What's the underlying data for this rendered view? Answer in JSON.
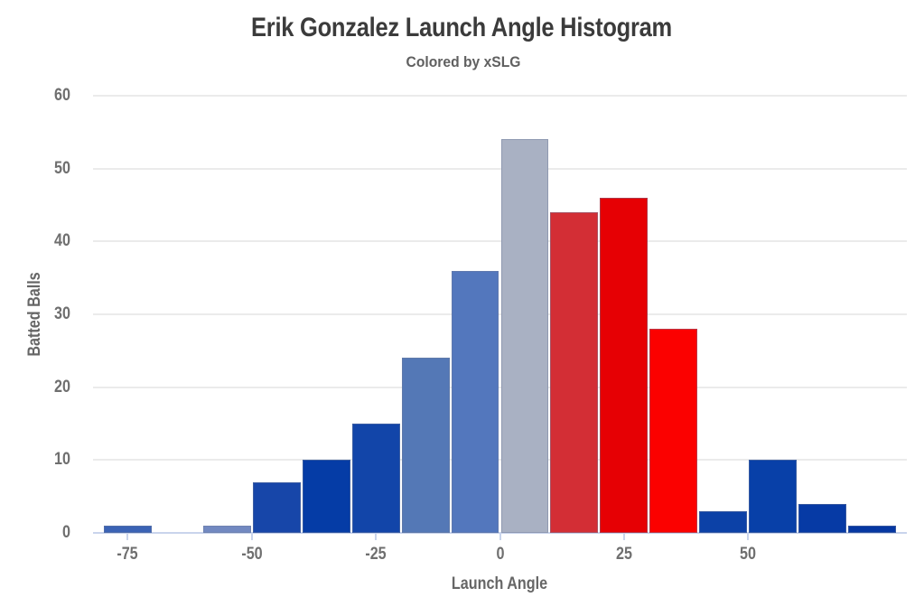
{
  "header": {
    "title": "Erik Gonzalez Launch Angle Histogram",
    "subtitle": "Colored by xSLG"
  },
  "chart_data": {
    "type": "bar",
    "subtype": "histogram",
    "title": "Erik Gonzalez Launch Angle Histogram",
    "subtitle": "Colored by xSLG",
    "xlabel": "Launch Angle",
    "ylabel": "Batted Balls",
    "color_by": "xSLG",
    "xlim": [
      -82,
      82
    ],
    "ylim": [
      0,
      60
    ],
    "x_ticks": [
      -75,
      -50,
      -25,
      0,
      25,
      50
    ],
    "y_ticks": [
      0,
      10,
      20,
      30,
      40,
      50,
      60
    ],
    "grid": true,
    "legend": false,
    "bin_width": 10,
    "bins": [
      {
        "x0": -80,
        "x1": -70,
        "count": 1,
        "color": "#3b63b5"
      },
      {
        "x0": -70,
        "x1": -60,
        "count": 0,
        "color": null
      },
      {
        "x0": -60,
        "x1": -50,
        "count": 1,
        "color": "#7289c1"
      },
      {
        "x0": -50,
        "x1": -40,
        "count": 7,
        "color": "#1746a9"
      },
      {
        "x0": -40,
        "x1": -30,
        "count": 10,
        "color": "#053ca6"
      },
      {
        "x0": -30,
        "x1": -20,
        "count": 15,
        "color": "#1245a9"
      },
      {
        "x0": -20,
        "x1": -10,
        "count": 24,
        "color": "#5478b6"
      },
      {
        "x0": -10,
        "x1": 0,
        "count": 36,
        "color": "#5377bd"
      },
      {
        "x0": 0,
        "x1": 10,
        "count": 54,
        "color": "#a9b1c3"
      },
      {
        "x0": 10,
        "x1": 20,
        "count": 44,
        "color": "#d32e35"
      },
      {
        "x0": 20,
        "x1": 30,
        "count": 46,
        "color": "#e60004"
      },
      {
        "x0": 30,
        "x1": 40,
        "count": 28,
        "color": "#fb0100"
      },
      {
        "x0": 40,
        "x1": 50,
        "count": 3,
        "color": "#0c41a7"
      },
      {
        "x0": 50,
        "x1": 60,
        "count": 10,
        "color": "#0840a8"
      },
      {
        "x0": 60,
        "x1": 70,
        "count": 4,
        "color": "#063aa5"
      },
      {
        "x0": 70,
        "x1": 80,
        "count": 1,
        "color": "#0537a2"
      }
    ],
    "colors": {
      "title": "#3b3b3b",
      "subtitle": "#606060",
      "tick_text": "#6f6f6f",
      "axis_title_text": "#666666",
      "gridline": "#ebebeb",
      "axis_line": "#c9d4ec",
      "background": "#ffffff"
    }
  }
}
